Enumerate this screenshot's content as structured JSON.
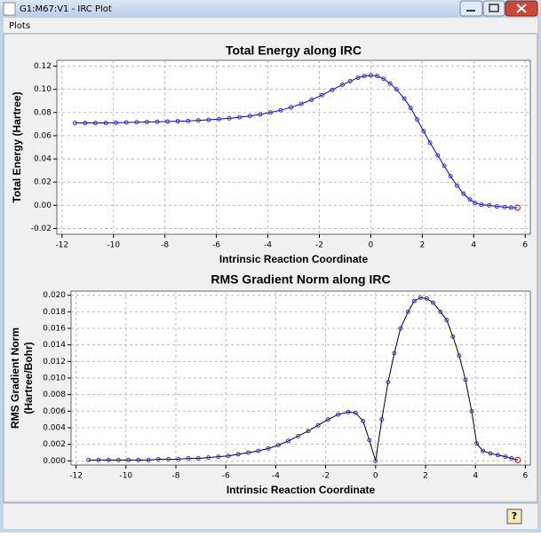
{
  "window": {
    "title": "G1:M67:V1 - IRC Plot",
    "menu": [
      "Plots"
    ]
  },
  "chart_data": [
    {
      "type": "line",
      "title": "Total Energy along IRC",
      "x_label": "Intrinsic Reaction Coordinate",
      "y_label": "Total Energy (Hartree)",
      "x": [
        -11.5,
        -11.1,
        -10.7,
        -10.3,
        -9.9,
        -9.5,
        -9.1,
        -8.7,
        -8.3,
        -7.9,
        -7.5,
        -7.1,
        -6.7,
        -6.3,
        -5.9,
        -5.5,
        -5.1,
        -4.7,
        -4.3,
        -3.9,
        -3.5,
        -3.1,
        -2.7,
        -2.3,
        -1.9,
        -1.5,
        -1.1,
        -0.8,
        -0.5,
        -0.25,
        0,
        0.25,
        0.5,
        0.75,
        1,
        1.3,
        1.55,
        1.8,
        2.05,
        2.3,
        2.6,
        2.85,
        3.1,
        3.35,
        3.6,
        3.85,
        4.05,
        4.3,
        4.6,
        4.9,
        5.2,
        5.45,
        5.7
      ],
      "values": [
        0.071,
        0.071,
        0.071,
        0.071,
        0.0712,
        0.0714,
        0.0716,
        0.0718,
        0.072,
        0.0722,
        0.0725,
        0.0728,
        0.0732,
        0.0737,
        0.0743,
        0.075,
        0.0759,
        0.077,
        0.0784,
        0.08,
        0.082,
        0.0845,
        0.0875,
        0.091,
        0.095,
        0.0995,
        0.104,
        0.107,
        0.11,
        0.1115,
        0.112,
        0.1115,
        0.109,
        0.105,
        0.1,
        0.092,
        0.084,
        0.074,
        0.064,
        0.054,
        0.043,
        0.034,
        0.025,
        0.017,
        0.01,
        0.005,
        0.002,
        0.0005,
        0,
        -0.001,
        -0.0015,
        -0.002,
        -0.002
      ],
      "line_color": "#0000cc",
      "marker_color": "#3333dd",
      "highlight_color": "#dd0000",
      "xlim": [
        -12.2,
        6.2
      ],
      "xticks": [
        -12,
        -10,
        -8,
        -6,
        -4,
        -2,
        0,
        2,
        4,
        6
      ],
      "ylim": [
        -0.025,
        0.125
      ],
      "yticks": [
        -0.02,
        {
          "value": 0,
          "label": "0.00"
        },
        0.02,
        0.04,
        0.06,
        0.08,
        {
          "value": 0.1,
          "label": "0.10"
        },
        0.12
      ],
      "grid": true
    },
    {
      "type": "line",
      "title": "RMS Gradient Norm along IRC",
      "x_label": "Intrinsic Reaction Coordinate",
      "y_label": [
        "RMS Gradient Norm",
        "(Hartree/Bohr)"
      ],
      "x": [
        -11.5,
        -11.1,
        -10.7,
        -10.3,
        -9.9,
        -9.5,
        -9.1,
        -8.7,
        -8.3,
        -7.9,
        -7.5,
        -7.1,
        -6.7,
        -6.3,
        -5.9,
        -5.5,
        -5.1,
        -4.7,
        -4.3,
        -3.9,
        -3.5,
        -3.1,
        -2.7,
        -2.3,
        -1.9,
        -1.5,
        -1.1,
        -0.8,
        -0.5,
        -0.25,
        0,
        0.25,
        0.5,
        0.75,
        1,
        1.3,
        1.55,
        1.8,
        2.05,
        2.3,
        2.6,
        2.85,
        3.1,
        3.35,
        3.6,
        3.85,
        4.05,
        4.3,
        4.6,
        4.9,
        5.2,
        5.45,
        5.7
      ],
      "values": [
        0.0001,
        0.0001,
        0.0001,
        0.0001,
        0.0001,
        0.0001,
        0.0001,
        0.0002,
        0.0002,
        0.0002,
        0.0003,
        0.0003,
        0.0004,
        0.0005,
        0.0006,
        0.0008,
        0.001,
        0.0012,
        0.0015,
        0.0019,
        0.0024,
        0.003,
        0.0036,
        0.0043,
        0.005,
        0.0056,
        0.0059,
        0.0058,
        0.0048,
        0.0025,
        0,
        0.005,
        0.0095,
        0.013,
        0.016,
        0.018,
        0.0193,
        0.0197,
        0.0196,
        0.0191,
        0.018,
        0.017,
        0.015,
        0.0127,
        0.0098,
        0.006,
        0.0021,
        0.0012,
        0.0009,
        0.0007,
        0.0005,
        0.0003,
        0.0001
      ],
      "line_color": "#000000",
      "marker_color": "#3333dd",
      "highlight_color": "#dd0000",
      "xlim": [
        -12.2,
        6.2
      ],
      "xticks": [
        -12,
        -10,
        -8,
        -6,
        -4,
        -2,
        0,
        2,
        4,
        6
      ],
      "ylim": [
        -0.0005,
        0.0205
      ],
      "yticks": [
        {
          "value": 0,
          "label": "0.000"
        },
        0.002,
        0.004,
        0.006,
        0.008,
        {
          "value": 0.01,
          "label": "0.010"
        },
        0.012,
        0.014,
        0.016,
        0.018,
        {
          "value": 0.02,
          "label": "0.020"
        }
      ],
      "grid": true
    }
  ]
}
